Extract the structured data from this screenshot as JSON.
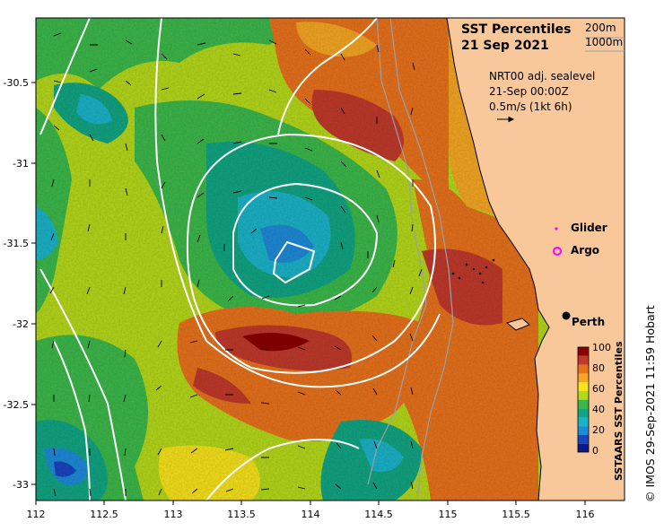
{
  "title": "SST Percentiles",
  "date": "21 Sep 2021",
  "contours": {
    "c200": "200m",
    "c1000": "1000m"
  },
  "sealevel": {
    "product": "NRT00 adj. sealevel",
    "time": "21-Sep 00:00Z",
    "scale": "0.5m/s (1kt 6h)"
  },
  "legend": {
    "glider": "Glider",
    "argo": "Argo"
  },
  "city": "Perth",
  "colorbar": {
    "label": "SSTAARS SST Percentiles",
    "ticks": [
      "100",
      "80",
      "60",
      "40",
      "20",
      "0"
    ],
    "colors": [
      "#8b0000",
      "#c0392b",
      "#e8721c",
      "#f5a623",
      "#f7e21b",
      "#b5d81a",
      "#3cb84a",
      "#11a582",
      "#1bb3c9",
      "#1e8ad8",
      "#1a43c0",
      "#0a1a8a"
    ]
  },
  "axes": {
    "x_ticks": [
      "112",
      "112.5",
      "113",
      "113.5",
      "114",
      "114.5",
      "115",
      "115.5",
      "116"
    ],
    "y_ticks": [
      "-30.5",
      "-31",
      "-31.5",
      "-32",
      "-32.5",
      "-33"
    ]
  },
  "credit": "© IMOS 29-Sep-2021 11:59 Hobart",
  "colors": {
    "land": "#f9c89a",
    "coast": "#000000",
    "contour": "#ffffff",
    "isobath": "#9aa0a6",
    "argo": "#ff00ff"
  }
}
